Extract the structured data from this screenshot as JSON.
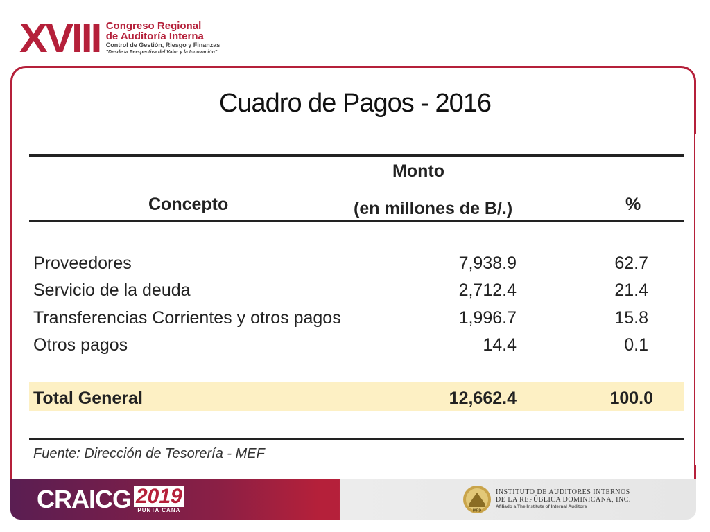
{
  "header": {
    "roman": "XVIII",
    "line1": "Congreso Regional",
    "line2": "de Auditoría Interna",
    "line3": "Control de Gestión, Riesgo y Finanzas",
    "line4": "\"Desde la Perspectiva del Valor y la Innovación\""
  },
  "title": "Cuadro de Pagos - 2016",
  "table": {
    "col_concepto": "Concepto",
    "col_monto_1": "Monto",
    "col_monto_2": "(en millones de B/.)",
    "col_pct": "%",
    "rows": [
      {
        "concepto": "Proveedores",
        "monto": "7,938.9",
        "pct": "62.7"
      },
      {
        "concepto": "Servicio de la deuda",
        "monto": "2,712.4",
        "pct": "21.4"
      },
      {
        "concepto": "Transferencias Corrientes y otros pagos",
        "monto": "1,996.7",
        "pct": "15.8"
      },
      {
        "concepto": "Otros pagos",
        "monto": "14.4",
        "pct": "0.1"
      }
    ],
    "total": {
      "concepto": "Total General",
      "monto": "12,662.4",
      "pct": "100.0"
    },
    "source": "Fuente: Dirección de Tesorería - MEF"
  },
  "footer": {
    "craicg": "CRAICG",
    "year": "2019",
    "city": "PUNTA CANA",
    "inst_line1": "INSTITUTO DE AUDITORES INTERNOS",
    "inst_line2": "DE LA REPÚBLICA DOMINICANA, INC.",
    "inst_line3": "Afiliado a The Institute of Internal Auditors",
    "seal_text": "IARD"
  },
  "colors": {
    "accent": "#b5203a",
    "total_band": "#fdf0c4"
  }
}
